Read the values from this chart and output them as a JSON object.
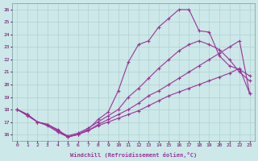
{
  "xlabel": "Windchill (Refroidissement éolien,°C)",
  "xlim": [
    -0.5,
    23.5
  ],
  "ylim": [
    15.5,
    26.5
  ],
  "yticks": [
    16,
    17,
    18,
    19,
    20,
    21,
    22,
    23,
    24,
    25,
    26
  ],
  "ytick_labels": [
    "16",
    "17",
    "18",
    "19",
    "20",
    "21",
    "22",
    "23",
    "24",
    "25",
    "26"
  ],
  "line_color": "#993399",
  "bg_color": "#cce8e8",
  "line1_y": [
    18.0,
    17.6,
    17.0,
    16.8,
    16.3,
    15.8,
    16.0,
    16.3,
    16.7,
    17.0,
    17.3,
    17.6,
    17.9,
    18.3,
    18.7,
    19.1,
    19.4,
    19.7,
    20.0,
    20.3,
    20.6,
    20.9,
    21.3,
    19.3
  ],
  "line2_y": [
    18.0,
    17.6,
    17.0,
    16.8,
    16.3,
    15.9,
    16.1,
    16.5,
    17.0,
    17.5,
    18.0,
    19.0,
    19.7,
    20.5,
    21.3,
    22.0,
    22.7,
    23.2,
    23.5,
    23.2,
    22.8,
    22.0,
    21.0,
    20.3
  ],
  "line3_y": [
    18.0,
    17.6,
    17.0,
    16.8,
    16.4,
    15.8,
    16.0,
    16.4,
    17.2,
    17.8,
    19.5,
    21.8,
    23.2,
    23.5,
    24.6,
    25.3,
    26.0,
    26.0,
    24.3,
    24.2,
    22.3,
    21.5,
    21.2,
    20.7
  ],
  "line4_y": [
    18.0,
    17.5,
    17.0,
    16.7,
    16.2,
    15.8,
    16.0,
    16.3,
    16.8,
    17.2,
    17.6,
    18.0,
    18.5,
    19.1,
    19.5,
    20.0,
    20.5,
    21.0,
    21.5,
    22.0,
    22.5,
    23.0,
    23.5,
    19.3
  ]
}
